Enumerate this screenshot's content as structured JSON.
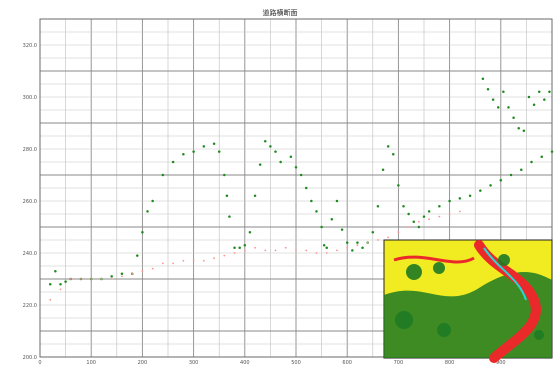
{
  "chart_data": {
    "type": "scatter",
    "title": "道路横断面",
    "xlabel": "",
    "ylabel": "",
    "xlim": [
      0,
      1000
    ],
    "ylim": [
      200,
      330
    ],
    "grid": true,
    "y_ticks": [
      "200.0",
      "220.0",
      "240.0",
      "260.0",
      "280.0",
      "300.0",
      "320.0"
    ],
    "x_ticks": [
      "0",
      "100",
      "200",
      "300",
      "400",
      "500",
      "600",
      "700",
      "800",
      "900"
    ],
    "series": [
      {
        "color": "#1f8a1f",
        "points": [
          [
            20,
            228
          ],
          [
            30,
            233
          ],
          [
            40,
            228
          ],
          [
            50,
            229
          ],
          [
            60,
            230
          ],
          [
            80,
            230
          ],
          [
            100,
            230
          ],
          [
            120,
            230
          ],
          [
            140,
            231
          ],
          [
            160,
            232
          ],
          [
            180,
            232
          ],
          [
            190,
            239
          ],
          [
            200,
            248
          ],
          [
            210,
            256
          ],
          [
            220,
            260
          ],
          [
            240,
            270
          ],
          [
            260,
            275
          ],
          [
            280,
            278
          ],
          [
            300,
            279
          ],
          [
            320,
            281
          ],
          [
            340,
            282
          ],
          [
            350,
            279
          ],
          [
            360,
            270
          ],
          [
            365,
            262
          ],
          [
            370,
            254
          ],
          [
            380,
            242
          ],
          [
            390,
            242
          ],
          [
            400,
            243
          ],
          [
            410,
            248
          ],
          [
            420,
            262
          ],
          [
            430,
            274
          ],
          [
            440,
            283
          ],
          [
            450,
            281
          ],
          [
            460,
            279
          ],
          [
            470,
            275
          ],
          [
            490,
            277
          ],
          [
            500,
            273
          ],
          [
            510,
            270
          ],
          [
            520,
            265
          ],
          [
            530,
            260
          ],
          [
            540,
            256
          ],
          [
            550,
            250
          ],
          [
            555,
            243
          ],
          [
            560,
            242
          ],
          [
            570,
            253
          ],
          [
            580,
            260
          ],
          [
            590,
            249
          ],
          [
            600,
            244
          ],
          [
            610,
            241
          ],
          [
            620,
            244
          ],
          [
            630,
            242
          ],
          [
            640,
            244
          ],
          [
            650,
            248
          ],
          [
            660,
            258
          ],
          [
            670,
            272
          ],
          [
            680,
            281
          ],
          [
            690,
            278
          ],
          [
            700,
            266
          ],
          [
            710,
            258
          ],
          [
            720,
            255
          ],
          [
            730,
            252
          ],
          [
            740,
            250
          ],
          [
            750,
            254
          ],
          [
            760,
            256
          ],
          [
            780,
            258
          ],
          [
            800,
            260
          ],
          [
            820,
            261
          ],
          [
            840,
            262
          ],
          [
            860,
            264
          ],
          [
            880,
            266
          ],
          [
            900,
            268
          ],
          [
            920,
            270
          ],
          [
            940,
            272
          ],
          [
            960,
            275
          ],
          [
            980,
            277
          ],
          [
            1000,
            279
          ],
          [
            865,
            307
          ],
          [
            875,
            303
          ],
          [
            885,
            299
          ],
          [
            895,
            296
          ],
          [
            905,
            302
          ],
          [
            915,
            296
          ],
          [
            925,
            292
          ],
          [
            935,
            288
          ],
          [
            945,
            287
          ],
          [
            955,
            300
          ],
          [
            965,
            297
          ],
          [
            975,
            302
          ],
          [
            985,
            299
          ],
          [
            995,
            302
          ]
        ]
      },
      {
        "color": "#ff9090",
        "points": [
          [
            20,
            222
          ],
          [
            40,
            226
          ],
          [
            60,
            230
          ],
          [
            80,
            230
          ],
          [
            100,
            230
          ],
          [
            120,
            230
          ],
          [
            140,
            230
          ],
          [
            160,
            231
          ],
          [
            180,
            232
          ],
          [
            200,
            233
          ],
          [
            220,
            234
          ],
          [
            240,
            236
          ],
          [
            260,
            236
          ],
          [
            280,
            237
          ],
          [
            300,
            237
          ],
          [
            320,
            237
          ],
          [
            340,
            238
          ],
          [
            360,
            239
          ],
          [
            380,
            240
          ],
          [
            400,
            241
          ],
          [
            420,
            242
          ],
          [
            440,
            241
          ],
          [
            460,
            241
          ],
          [
            480,
            242
          ],
          [
            500,
            241
          ],
          [
            520,
            241
          ],
          [
            540,
            240
          ],
          [
            560,
            240
          ],
          [
            580,
            241
          ],
          [
            600,
            242
          ],
          [
            620,
            243
          ],
          [
            640,
            244
          ],
          [
            660,
            245
          ],
          [
            680,
            246
          ],
          [
            700,
            248
          ],
          [
            720,
            250
          ],
          [
            740,
            252
          ],
          [
            760,
            253
          ],
          [
            780,
            254
          ],
          [
            800,
            255
          ],
          [
            820,
            256
          ]
        ]
      }
    ]
  },
  "inset": {
    "colors": {
      "yellow": "#f1ec21",
      "green": "#1e7a23",
      "red": "#ea2a2a",
      "cyan": "#29d6d6"
    }
  }
}
